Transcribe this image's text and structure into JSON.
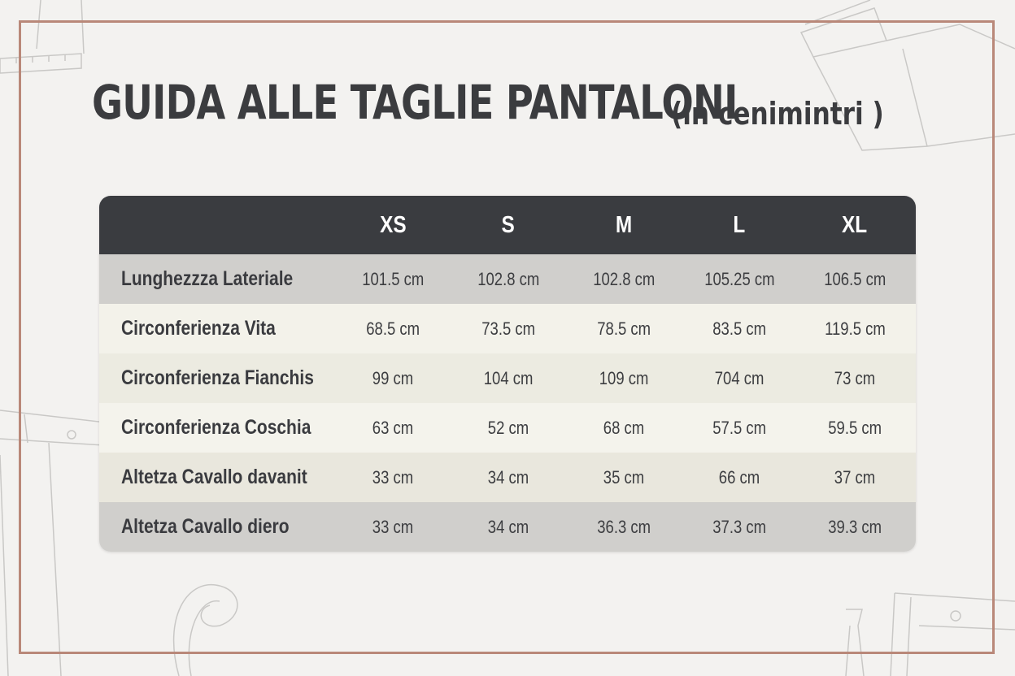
{
  "title": {
    "main": "GUIDA ALLE TAGLIE PANTALONI",
    "sub": "(in cenimintri )"
  },
  "table": {
    "columns": [
      "XS",
      "S",
      "M",
      "L",
      "XL"
    ],
    "rows": [
      {
        "label": "Lunghezzza Lateriale",
        "values": [
          "101.5 cm",
          "102.8 cm",
          "102.8 cm",
          "105.25 cm",
          "106.5 cm"
        ]
      },
      {
        "label": "Circonferienza Vita",
        "values": [
          "68.5 cm",
          "73.5 cm",
          "78.5 cm",
          "83.5 cm",
          "119.5 cm"
        ]
      },
      {
        "label": "Circonferienza Fianchis",
        "values": [
          "99 cm",
          "104 cm",
          "109 cm",
          "704 cm",
          "73 cm"
        ]
      },
      {
        "label": "Circonferienza Coschia",
        "values": [
          "63 cm",
          "52 cm",
          "68 cm",
          "57.5 cm",
          "59.5 cm"
        ]
      },
      {
        "label": "Altetza Cavallo davanit",
        "values": [
          "33 cm",
          "34 cm",
          "35 cm",
          "66 cm",
          "37 cm"
        ]
      },
      {
        "label": "Altetza Cavallo diero",
        "values": [
          "33 cm",
          "34 cm",
          "36.3 cm",
          "37.3 cm",
          "39.3 cm"
        ]
      }
    ]
  },
  "colors": {
    "header_bg": "#3a3c40",
    "frame": "#b98879",
    "background": "#f3f2f0"
  }
}
